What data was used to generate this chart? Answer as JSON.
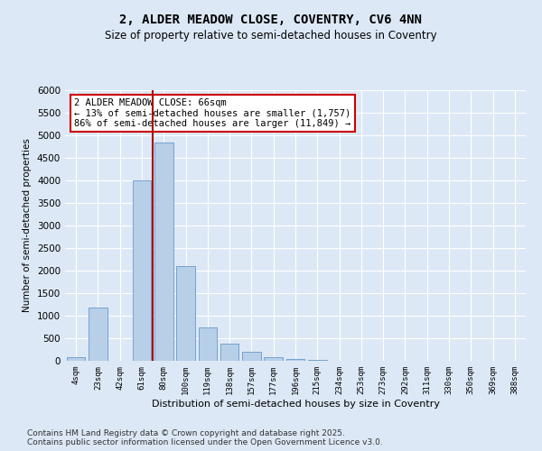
{
  "title": "2, ALDER MEADOW CLOSE, COVENTRY, CV6 4NN",
  "subtitle": "Size of property relative to semi-detached houses in Coventry",
  "xlabel": "Distribution of semi-detached houses by size in Coventry",
  "ylabel": "Number of semi-detached properties",
  "categories": [
    "4sqm",
    "23sqm",
    "42sqm",
    "61sqm",
    "80sqm",
    "100sqm",
    "119sqm",
    "138sqm",
    "157sqm",
    "177sqm",
    "196sqm",
    "215sqm",
    "234sqm",
    "253sqm",
    "273sqm",
    "292sqm",
    "311sqm",
    "330sqm",
    "350sqm",
    "369sqm",
    "388sqm"
  ],
  "values": [
    80,
    1180,
    0,
    4000,
    4850,
    2100,
    750,
    380,
    200,
    90,
    50,
    20,
    10,
    5,
    3,
    2,
    1,
    1,
    0,
    0,
    0
  ],
  "bar_color": "#b8cfe8",
  "bar_edge_color": "#6699cc",
  "vline_color": "#aa0000",
  "annotation_text": "2 ALDER MEADOW CLOSE: 66sqm\n← 13% of semi-detached houses are smaller (1,757)\n86% of semi-detached houses are larger (11,849) →",
  "annotation_box_color": "#ffffff",
  "annotation_box_edge": "#cc0000",
  "ylim": [
    0,
    6000
  ],
  "yticks": [
    0,
    500,
    1000,
    1500,
    2000,
    2500,
    3000,
    3500,
    4000,
    4500,
    5000,
    5500,
    6000
  ],
  "bg_color": "#dce8f5",
  "grid_color": "#ffffff",
  "footer": "Contains HM Land Registry data © Crown copyright and database right 2025.\nContains public sector information licensed under the Open Government Licence v3.0.",
  "title_fontsize": 10,
  "subtitle_fontsize": 8.5,
  "footer_fontsize": 6.5
}
